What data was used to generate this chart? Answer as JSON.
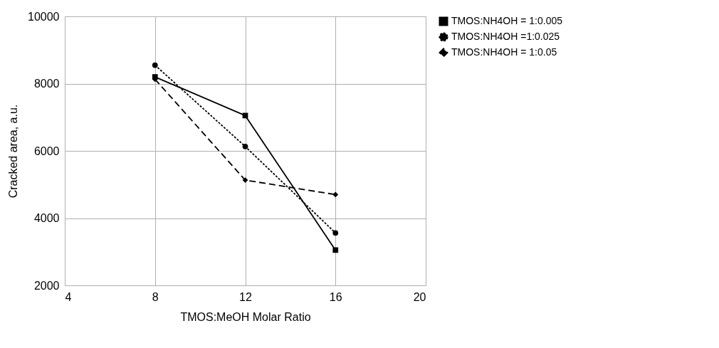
{
  "chart_data": {
    "type": "line",
    "xlabel": "TMOS:MeOH Molar Ratio",
    "ylabel": "Cracked area, a.u.",
    "x": [
      8,
      12,
      16
    ],
    "series": [
      {
        "name": "TMOS:NH4OH = 1:0.005",
        "color": "#000000",
        "values": [
          8200,
          7050,
          3050
        ],
        "marker": "square",
        "line_style": "solid"
      },
      {
        "name": "TMOS:NH4OH =1:0.025",
        "color": "#000000",
        "values": [
          8550,
          6130,
          3560
        ],
        "marker": "circle",
        "line_style": "dotted"
      },
      {
        "name": "TMOS:NH4OH = 1:0.05",
        "color": "#000000",
        "values": [
          8130,
          5130,
          4700
        ],
        "marker": "diamond",
        "line_style": "dashed"
      }
    ],
    "xlim": [
      4,
      20
    ],
    "xticks": [
      4,
      8,
      12,
      16,
      20
    ],
    "ylim": [
      2000,
      10000
    ],
    "yticks": [
      2000,
      4000,
      6000,
      8000,
      10000
    ],
    "grid": true,
    "legend": "right"
  }
}
